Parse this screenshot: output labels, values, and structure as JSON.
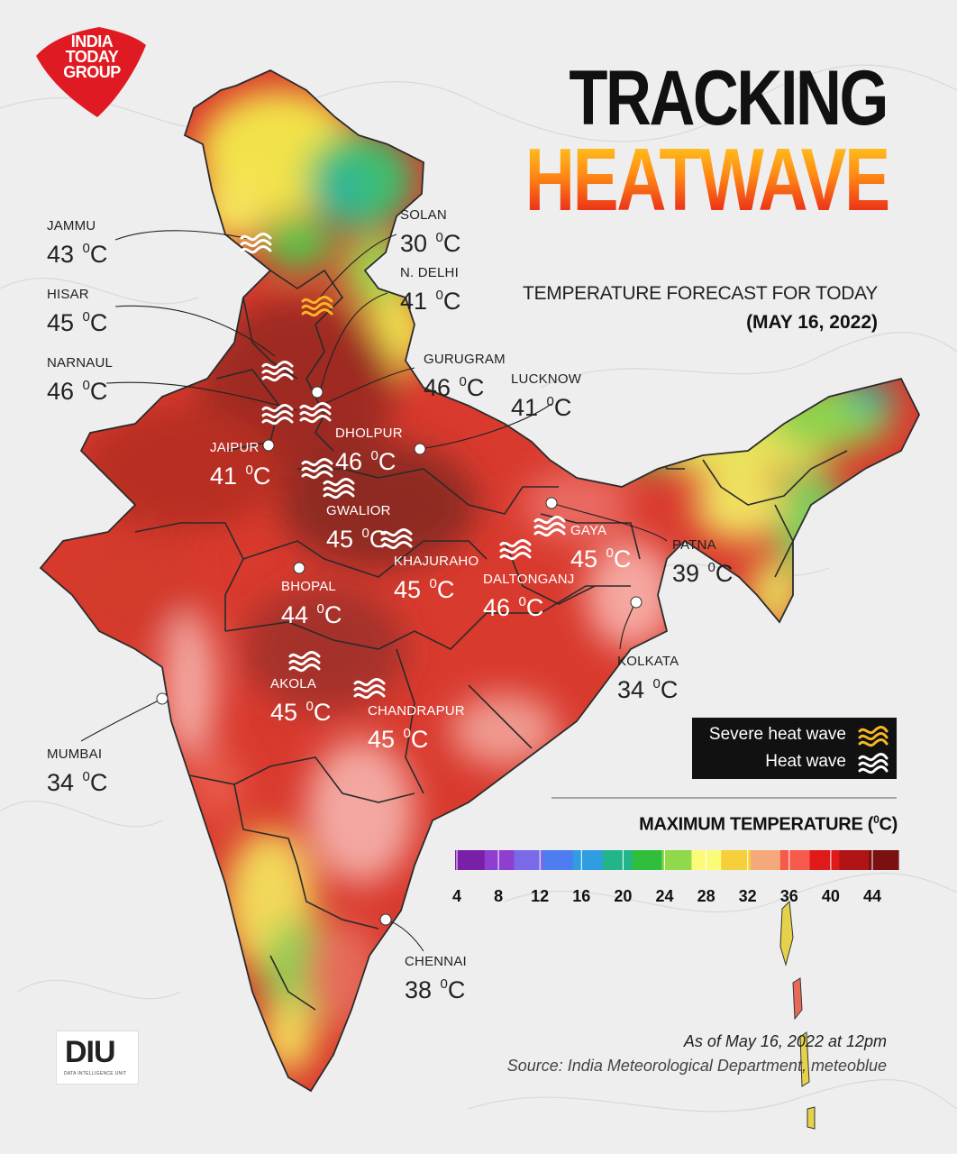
{
  "brand": {
    "logo_lines": [
      "INDIA",
      "TODAY",
      "GROUP"
    ],
    "unit_logo": "DIU",
    "unit_logo_sub": "DATA INTELLIGENCE UNIT",
    "logo_color": "#e01a22"
  },
  "title": {
    "line1": "TRACKING",
    "line2": "HEATWAVE"
  },
  "subtitle": "TEMPERATURE FORECAST FOR TODAY",
  "date": "(MAY 16, 2022)",
  "degree_symbol": "0",
  "temp_unit": "C",
  "cities": [
    {
      "name": "JAMMU",
      "temp": "43"
    },
    {
      "name": "HISAR",
      "temp": "45"
    },
    {
      "name": "NARNAUL",
      "temp": "46"
    },
    {
      "name": "SOLAN",
      "temp": "30"
    },
    {
      "name": "N. DELHI",
      "temp": "41"
    },
    {
      "name": "GURUGRAM",
      "temp": "46"
    },
    {
      "name": "LUCKNOW",
      "temp": "41"
    },
    {
      "name": "JAIPUR",
      "temp": "41"
    },
    {
      "name": "DHOLPUR",
      "temp": "46"
    },
    {
      "name": "GWALIOR",
      "temp": "45"
    },
    {
      "name": "KHAJURAHO",
      "temp": "45"
    },
    {
      "name": "GAYA",
      "temp": "45"
    },
    {
      "name": "PATNA",
      "temp": "39"
    },
    {
      "name": "BHOPAL",
      "temp": "44"
    },
    {
      "name": "DALTONGANJ",
      "temp": "46"
    },
    {
      "name": "KOLKATA",
      "temp": "34"
    },
    {
      "name": "AKOLA",
      "temp": "45"
    },
    {
      "name": "CHANDRAPUR",
      "temp": "45"
    },
    {
      "name": "MUMBAI",
      "temp": "34"
    },
    {
      "name": "CHENNAI",
      "temp": "38"
    }
  ],
  "legend": {
    "severe_label": "Severe heat wave",
    "heat_label": "Heat wave",
    "severe_color": "#f5b824",
    "heat_color": "#ffffff"
  },
  "color_scale": {
    "title": "MAXIMUM TEMPERATURE (",
    "title_sup": "0",
    "title_end": "C)",
    "ticks": [
      "4",
      "8",
      "12",
      "16",
      "20",
      "24",
      "28",
      "32",
      "36",
      "40",
      "44"
    ],
    "colors": [
      "#7a1fa8",
      "#8f3fd0",
      "#7a6ae8",
      "#4d7df0",
      "#2e9ee0",
      "#22b58a",
      "#2fbf3c",
      "#8fd94a",
      "#fbfb7a",
      "#f5d03a",
      "#f5a97a",
      "#f55a4a",
      "#e01a1a",
      "#b01414",
      "#7a1010"
    ]
  },
  "footer": {
    "as_of": "As of May 16, 2022 at 12pm",
    "source": "Source: India Meteorological Department, meteoblue"
  }
}
